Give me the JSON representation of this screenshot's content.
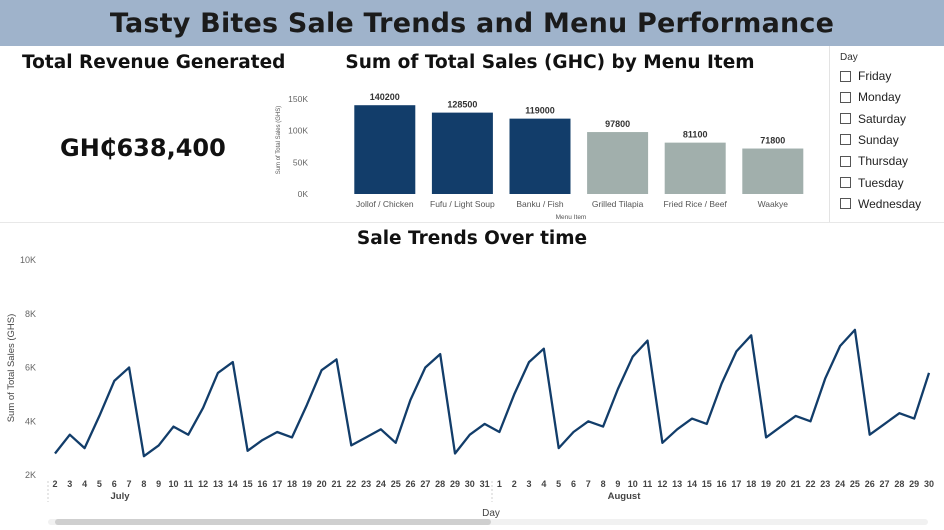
{
  "header": {
    "title": "Tasty Bites Sale Trends and Menu Performance"
  },
  "kpi": {
    "title": "Total Revenue Generated",
    "value": "GH₵638,400"
  },
  "slicer": {
    "title": "Day",
    "options": [
      "Friday",
      "Monday",
      "Saturday",
      "Sunday",
      "Thursday",
      "Tuesday",
      "Wednesday"
    ]
  },
  "colors": {
    "banner": "#9fb3cb",
    "primary": "#123d6a",
    "muted": "#a1afac"
  },
  "chart_data": [
    {
      "type": "bar",
      "title": "Sum of Total Sales (GHC) by Menu Item",
      "xlabel": "Menu Item",
      "ylabel": "Sum of Total Sales (GHS)",
      "categories": [
        "Jollof / Chicken",
        "Fufu / Light Soup",
        "Banku / Fish",
        "Grilled Tilapia",
        "Fried Rice / Beef",
        "Waakye"
      ],
      "values": [
        140200,
        128500,
        119000,
        97800,
        81100,
        71800
      ],
      "value_labels": [
        "140200",
        "128500",
        "119000",
        "97800",
        "81100",
        "71800"
      ],
      "bar_colors": [
        "#123d6a",
        "#123d6a",
        "#123d6a",
        "#a1afac",
        "#a1afac",
        "#a1afac"
      ],
      "ylim": [
        0,
        150000
      ],
      "yticks": [
        0,
        50000,
        100000,
        150000
      ],
      "ytick_labels": [
        "0K",
        "50K",
        "100K",
        "150K"
      ],
      "grid": false
    },
    {
      "type": "line",
      "title": "Sale Trends Over time",
      "xlabel": "Day",
      "ylabel": "Sum of Total Sales (GHS)",
      "months": [
        {
          "name": "July",
          "days": [
            "2",
            "3",
            "4",
            "5",
            "6",
            "7",
            "8",
            "9",
            "10",
            "11",
            "12",
            "13",
            "14",
            "15",
            "16",
            "17",
            "18",
            "19",
            "20",
            "21",
            "22",
            "23",
            "24",
            "25",
            "26",
            "27",
            "28",
            "29",
            "30",
            "31"
          ]
        },
        {
          "name": "August",
          "days": [
            "1",
            "2",
            "3",
            "4",
            "5",
            "6",
            "7",
            "8",
            "9",
            "10",
            "11",
            "12",
            "13",
            "14",
            "15",
            "16",
            "17",
            "18",
            "19",
            "20",
            "21",
            "22",
            "23",
            "24",
            "25",
            "26",
            "27",
            "28",
            "29",
            "30"
          ]
        }
      ],
      "values": [
        2800,
        3500,
        3000,
        4200,
        5500,
        6000,
        2700,
        3100,
        3800,
        3500,
        4500,
        5800,
        6200,
        2900,
        3300,
        3600,
        3400,
        4600,
        5900,
        6300,
        3100,
        3400,
        3700,
        3200,
        4800,
        6000,
        6500,
        2800,
        3500,
        3900,
        3600,
        5000,
        6200,
        6700,
        3000,
        3600,
        4000,
        3800,
        5200,
        6400,
        7000,
        3200,
        3700,
        4100,
        3900,
        5400,
        6600,
        7200,
        3400,
        3800,
        4200,
        4000,
        5600,
        6800,
        7400,
        3500,
        3900,
        4300,
        4100,
        5800
      ],
      "ylim": [
        2000,
        10000
      ],
      "yticks": [
        2000,
        4000,
        6000,
        8000,
        10000
      ],
      "ytick_labels": [
        "2K",
        "4K",
        "6K",
        "8K",
        "10K"
      ],
      "line_color": "#123d6a",
      "grid": false
    }
  ]
}
